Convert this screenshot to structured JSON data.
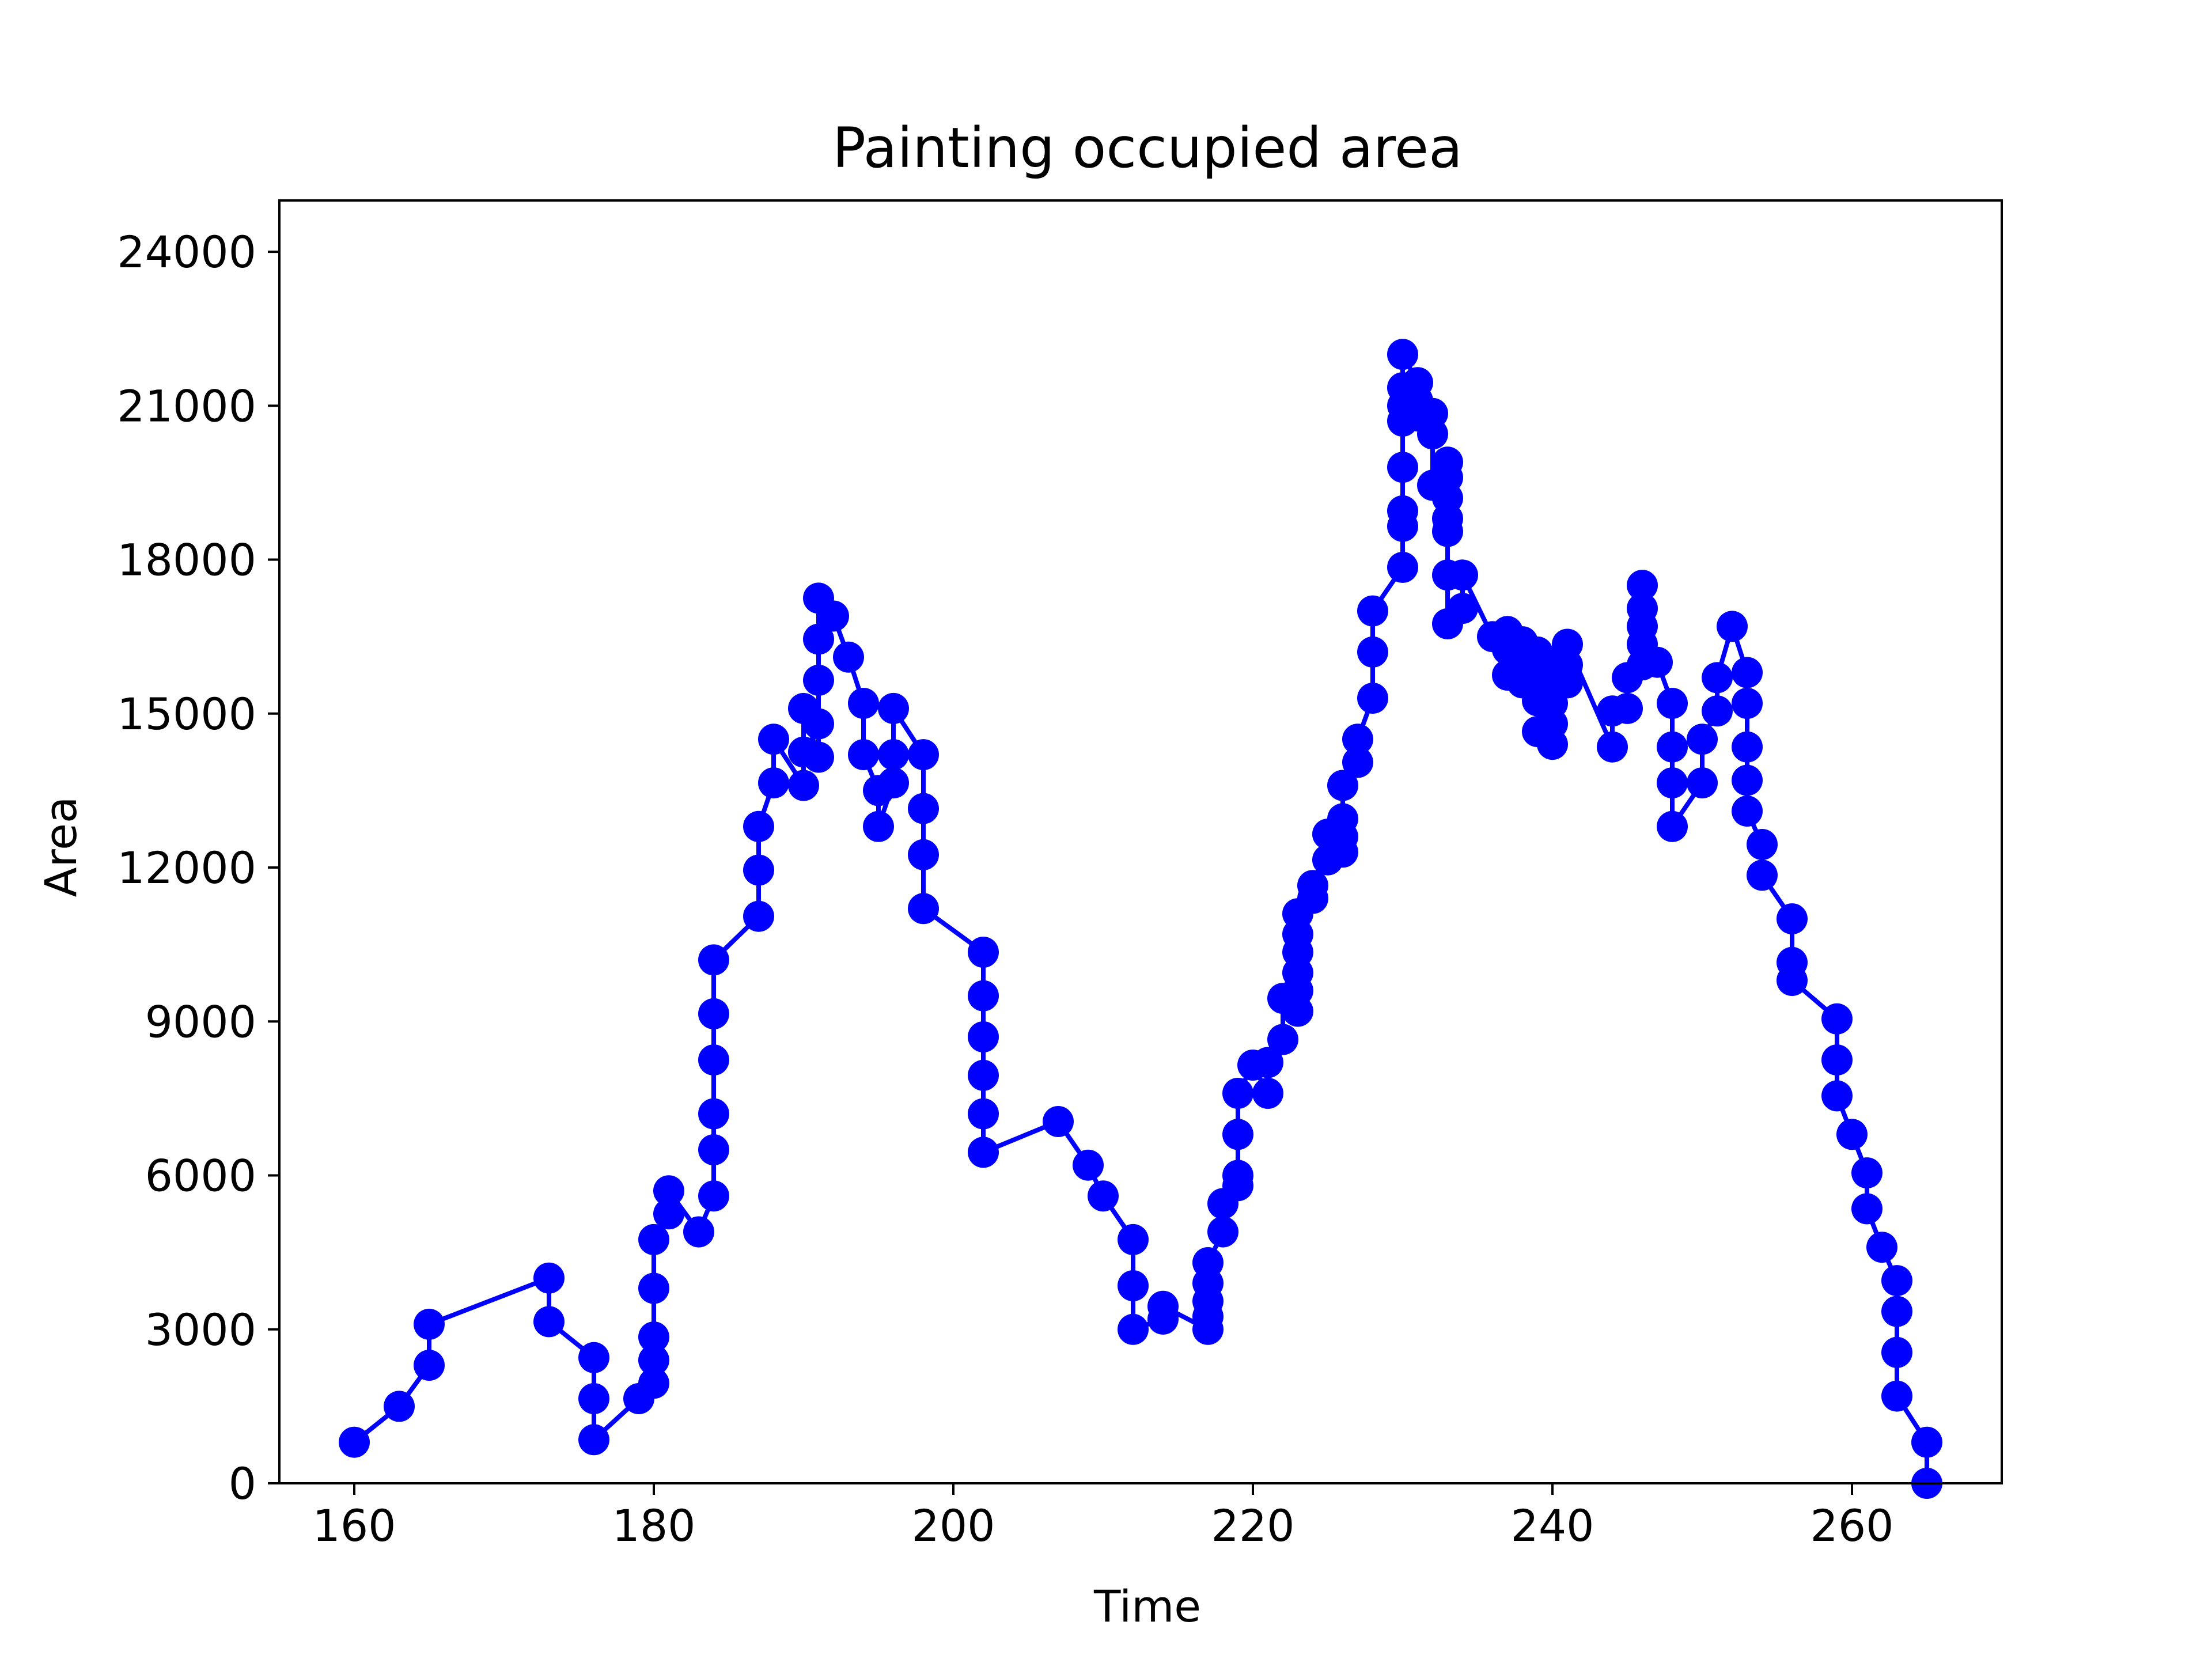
{
  "chart_data": {
    "type": "line",
    "title": "Painting occupied area",
    "xlabel": "Time",
    "ylabel": "Area",
    "xlim": [
      155,
      270
    ],
    "ylim": [
      0,
      25000
    ],
    "x_ticks": [
      160,
      180,
      200,
      220,
      240,
      260
    ],
    "y_ticks": [
      0,
      3000,
      6000,
      9000,
      12000,
      15000,
      18000,
      21000,
      24000
    ],
    "grid": false,
    "legend": "none",
    "series": [
      {
        "color": "#0000ff",
        "marker": "circle",
        "points": [
          [
            160,
            800
          ],
          [
            163,
            1500
          ],
          [
            165,
            2300
          ],
          [
            165,
            3100
          ],
          [
            173,
            4000
          ],
          [
            173,
            3150
          ],
          [
            176,
            2450
          ],
          [
            176,
            1650
          ],
          [
            176,
            850
          ],
          [
            179,
            1650
          ],
          [
            180,
            1950
          ],
          [
            180,
            2400
          ],
          [
            180,
            2850
          ],
          [
            180,
            3800
          ],
          [
            180,
            4750
          ],
          [
            181,
            5250
          ],
          [
            181,
            5700
          ],
          [
            183,
            4900
          ],
          [
            184,
            5600
          ],
          [
            184,
            6500
          ],
          [
            184,
            7200
          ],
          [
            184,
            8250
          ],
          [
            184,
            9150
          ],
          [
            184,
            10200
          ],
          [
            187,
            11050
          ],
          [
            187,
            11950
          ],
          [
            187,
            12800
          ],
          [
            188,
            13650
          ],
          [
            188,
            14500
          ],
          [
            190,
            13600
          ],
          [
            190,
            14250
          ],
          [
            190,
            15100
          ],
          [
            191,
            14150
          ],
          [
            191,
            14800
          ],
          [
            191,
            15650
          ],
          [
            191,
            16450
          ],
          [
            191,
            17250
          ],
          [
            192,
            16900
          ],
          [
            193,
            16100
          ],
          [
            194,
            15200
          ],
          [
            194,
            14200
          ],
          [
            195,
            13500
          ],
          [
            195,
            12800
          ],
          [
            196,
            13650
          ],
          [
            196,
            14200
          ],
          [
            196,
            15100
          ],
          [
            198,
            14200
          ],
          [
            198,
            13150
          ],
          [
            198,
            12250
          ],
          [
            198,
            11200
          ],
          [
            202,
            10350
          ],
          [
            202,
            9500
          ],
          [
            202,
            8700
          ],
          [
            202,
            7950
          ],
          [
            202,
            7200
          ],
          [
            202,
            6450
          ],
          [
            207,
            7050
          ],
          [
            209,
            6200
          ],
          [
            210,
            5600
          ],
          [
            212,
            4750
          ],
          [
            212,
            3850
          ],
          [
            212,
            3000
          ],
          [
            214,
            3200
          ],
          [
            214,
            3450
          ],
          [
            217,
            3000
          ],
          [
            217,
            3250
          ],
          [
            217,
            3550
          ],
          [
            217,
            3900
          ],
          [
            217,
            4300
          ],
          [
            218,
            4900
          ],
          [
            218,
            5450
          ],
          [
            219,
            5800
          ],
          [
            219,
            6000
          ],
          [
            219,
            6800
          ],
          [
            219,
            7600
          ],
          [
            220,
            8150
          ],
          [
            221,
            7600
          ],
          [
            221,
            8200
          ],
          [
            222,
            8650
          ],
          [
            222,
            9450
          ],
          [
            223,
            9200
          ],
          [
            223,
            9600
          ],
          [
            223,
            9950
          ],
          [
            223,
            10350
          ],
          [
            223,
            10700
          ],
          [
            223,
            11100
          ],
          [
            224,
            11400
          ],
          [
            224,
            11650
          ],
          [
            225,
            12150
          ],
          [
            225,
            12650
          ],
          [
            226,
            12300
          ],
          [
            226,
            12600
          ],
          [
            226,
            12950
          ],
          [
            226,
            13600
          ],
          [
            227,
            14050
          ],
          [
            227,
            14500
          ],
          [
            228,
            15300
          ],
          [
            228,
            16200
          ],
          [
            228,
            17000
          ],
          [
            230,
            17850
          ],
          [
            230,
            18650
          ],
          [
            230,
            18950
          ],
          [
            230,
            19800
          ],
          [
            230,
            20700
          ],
          [
            230,
            21000
          ],
          [
            230,
            21350
          ],
          [
            230,
            22000
          ],
          [
            231,
            21450
          ],
          [
            231,
            21100
          ],
          [
            231,
            20800
          ],
          [
            232,
            20450
          ],
          [
            232,
            20850
          ],
          [
            232,
            19450
          ],
          [
            233,
            19900
          ],
          [
            233,
            19600
          ],
          [
            233,
            19200
          ],
          [
            233,
            18800
          ],
          [
            233,
            18550
          ],
          [
            233,
            17700
          ],
          [
            233,
            16750
          ],
          [
            234,
            17050
          ],
          [
            234,
            17700
          ],
          [
            236,
            16500
          ],
          [
            237,
            16600
          ],
          [
            237,
            16250
          ],
          [
            237,
            15750
          ],
          [
            238,
            16400
          ],
          [
            238,
            15950
          ],
          [
            238,
            15600
          ],
          [
            239,
            16200
          ],
          [
            239,
            15800
          ],
          [
            239,
            15250
          ],
          [
            239,
            14650
          ],
          [
            240,
            14400
          ],
          [
            240,
            14800
          ],
          [
            240,
            15200
          ],
          [
            240,
            15550
          ],
          [
            240,
            15950
          ],
          [
            241,
            15600
          ],
          [
            241,
            15950
          ],
          [
            241,
            16350
          ],
          [
            244,
            14350
          ],
          [
            244,
            15050
          ],
          [
            245,
            15100
          ],
          [
            245,
            15700
          ],
          [
            246,
            15950
          ],
          [
            246,
            16350
          ],
          [
            246,
            16700
          ],
          [
            246,
            17050
          ],
          [
            246,
            17500
          ],
          [
            247,
            16000
          ],
          [
            248,
            15200
          ],
          [
            248,
            14350
          ],
          [
            248,
            13650
          ],
          [
            248,
            12800
          ],
          [
            250,
            13650
          ],
          [
            250,
            14500
          ],
          [
            251,
            15050
          ],
          [
            251,
            15700
          ],
          [
            252,
            16700
          ],
          [
            253,
            15800
          ],
          [
            253,
            15200
          ],
          [
            253,
            14350
          ],
          [
            253,
            13700
          ],
          [
            253,
            13100
          ],
          [
            254,
            12450
          ],
          [
            254,
            11850
          ],
          [
            256,
            11000
          ],
          [
            256,
            10150
          ],
          [
            256,
            9800
          ],
          [
            259,
            9050
          ],
          [
            259,
            8250
          ],
          [
            259,
            7550
          ],
          [
            260,
            6800
          ],
          [
            261,
            6050
          ],
          [
            261,
            5350
          ],
          [
            262,
            4600
          ],
          [
            263,
            3950
          ],
          [
            263,
            3350
          ],
          [
            263,
            2550
          ],
          [
            263,
            1700
          ],
          [
            265,
            800
          ],
          [
            265,
            0
          ]
        ]
      }
    ]
  }
}
